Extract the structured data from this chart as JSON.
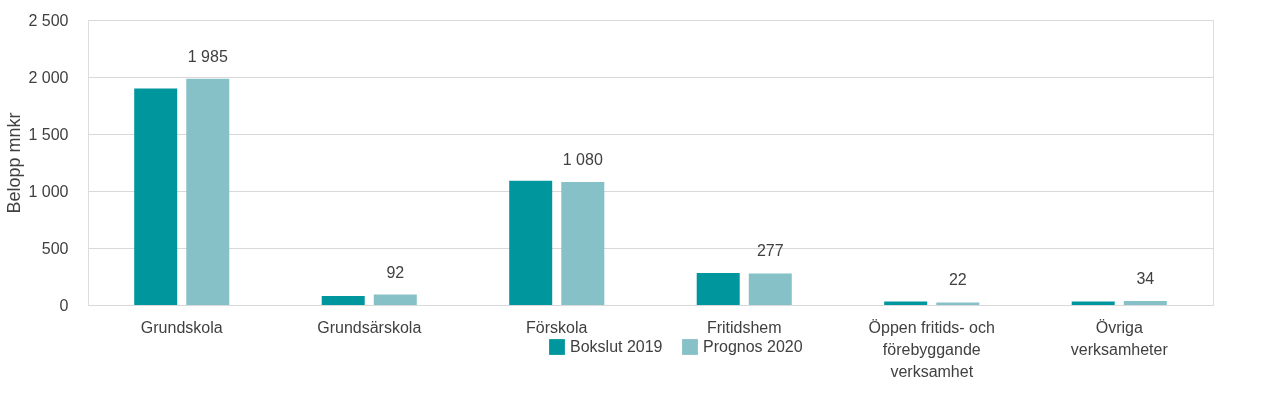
{
  "chart_data": {
    "type": "bar",
    "ylabel": "Belopp mnkr",
    "categories": [
      "Grundskola",
      "Grundsärskola",
      "Förskola",
      "Fritidshem",
      "Öppen fritids- och förebyggande verksamhet",
      "Övriga verksamheter"
    ],
    "series": [
      {
        "name": "Bokslut 2019",
        "color": "#00969e",
        "values": [
          1900,
          80,
          1090,
          280,
          30,
          30
        ]
      },
      {
        "name": "Prognos 2020",
        "color": "#86c1c8",
        "values": [
          1985,
          92,
          1080,
          277,
          22,
          34
        ],
        "value_labels": [
          "1 985",
          "92",
          "1 080",
          "277",
          "22",
          "34"
        ]
      }
    ],
    "ylim": [
      0,
      2500
    ],
    "yticks": [
      0,
      500,
      {
        "value": 1000,
        "label": "1 000"
      },
      {
        "value": 1500,
        "label": "1 500"
      },
      {
        "value": 2000,
        "label": "2 000"
      },
      {
        "value": 2500,
        "label": "2 500"
      }
    ],
    "grid": "y",
    "legend": "bottom"
  }
}
